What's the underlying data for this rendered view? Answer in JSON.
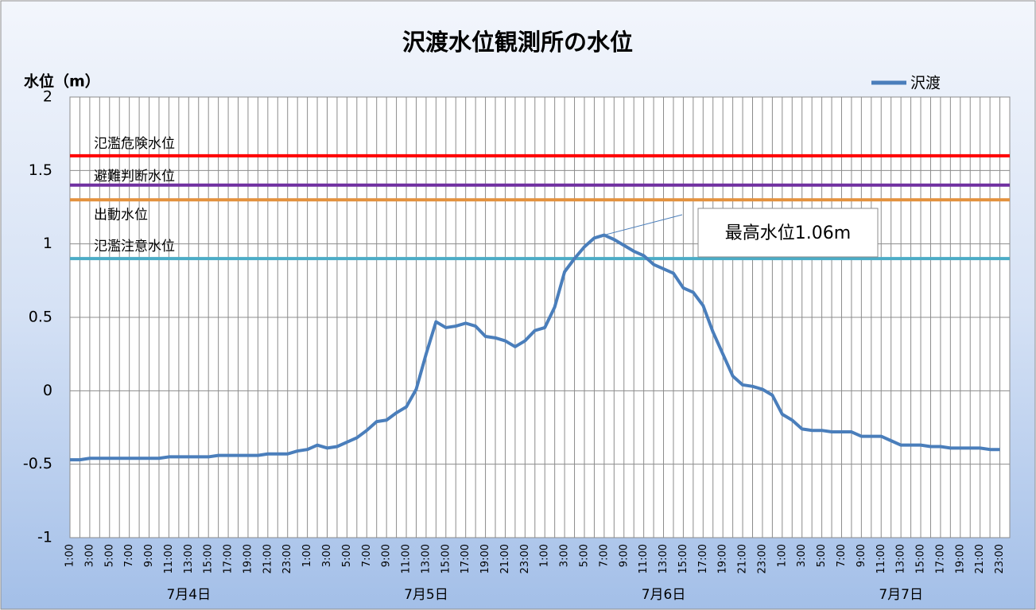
{
  "chart_data": {
    "type": "line",
    "title": "沢渡水位観測所の水位",
    "y_label": "水位（m）",
    "ylim": [
      -1,
      2
    ],
    "yticks": [
      -1,
      -0.5,
      0,
      0.5,
      1,
      1.5,
      2
    ],
    "grid": true,
    "legend": "top-right",
    "categories": [
      "1:00",
      null,
      "3:00",
      null,
      "5:00",
      null,
      "7:00",
      null,
      "9:00",
      null,
      "11:00",
      null,
      "13:00",
      null,
      "15:00",
      null,
      "17:00",
      null,
      "19:00",
      null,
      "21:00",
      null,
      "23:00",
      null,
      "1:00",
      null,
      "3:00",
      null,
      "5:00",
      null,
      "7:00",
      null,
      "9:00",
      null,
      "11:00",
      null,
      "13:00",
      null,
      "15:00",
      null,
      "17:00",
      null,
      "19:00",
      null,
      "21:00",
      null,
      "23:00",
      null,
      "1:00",
      null,
      "3:00",
      null,
      "5:00",
      null,
      "7:00",
      null,
      "9:00",
      null,
      "11:00",
      null,
      "13:00",
      null,
      "15:00",
      null,
      "17:00",
      null,
      "19:00",
      null,
      "21:00",
      null,
      "23:00",
      null,
      "1:00",
      null,
      "3:00",
      null,
      "5:00",
      null,
      "7:00",
      null,
      "9:00",
      null,
      "11:00",
      null,
      "13:00",
      null,
      "15:00",
      null,
      "17:00",
      null,
      "19:00",
      null,
      "21:00",
      null,
      "23:00",
      null
    ],
    "day_labels": [
      "7月4日",
      "7月5日",
      "7月6日",
      "7月7日"
    ],
    "series": [
      {
        "name": "沢渡",
        "color": "#4a7ebb",
        "values": [
          -0.47,
          -0.47,
          -0.46,
          -0.46,
          -0.46,
          -0.46,
          -0.46,
          -0.46,
          -0.46,
          -0.46,
          -0.45,
          -0.45,
          -0.45,
          -0.45,
          -0.45,
          -0.44,
          -0.44,
          -0.44,
          -0.44,
          -0.44,
          -0.43,
          -0.43,
          -0.43,
          -0.41,
          -0.4,
          -0.37,
          -0.39,
          -0.38,
          -0.35,
          -0.32,
          -0.27,
          -0.21,
          -0.2,
          -0.15,
          -0.11,
          0.01,
          0.25,
          0.47,
          0.43,
          0.44,
          0.46,
          0.44,
          0.37,
          0.36,
          0.34,
          0.3,
          0.34,
          0.41,
          0.43,
          0.57,
          0.81,
          0.9,
          0.98,
          1.04,
          1.06,
          1.03,
          0.99,
          0.95,
          0.92,
          0.86,
          0.83,
          0.8,
          0.7,
          0.67,
          0.58,
          0.4,
          0.25,
          0.1,
          0.04,
          0.03,
          0.01,
          -0.03,
          -0.16,
          -0.2,
          -0.26,
          -0.27,
          -0.27,
          -0.28,
          -0.28,
          -0.28,
          -0.31,
          -0.31,
          -0.31,
          -0.34,
          -0.37,
          -0.37,
          -0.37,
          -0.38,
          -0.38,
          -0.39,
          -0.39,
          -0.39,
          -0.39,
          -0.4,
          -0.4,
          null
        ]
      }
    ],
    "reference_lines": [
      {
        "label": "氾濫危険水位",
        "value": 1.6,
        "color": "#ff0000"
      },
      {
        "label": "避難判断水位",
        "value": 1.4,
        "color": "#7030a0"
      },
      {
        "label": "出動水位",
        "value": 1.3,
        "color": "#e3913d"
      },
      {
        "label": "氾濫注意水位",
        "value": 0.9,
        "color": "#4bacc6"
      }
    ],
    "annotation": "最高水位1.06m"
  }
}
